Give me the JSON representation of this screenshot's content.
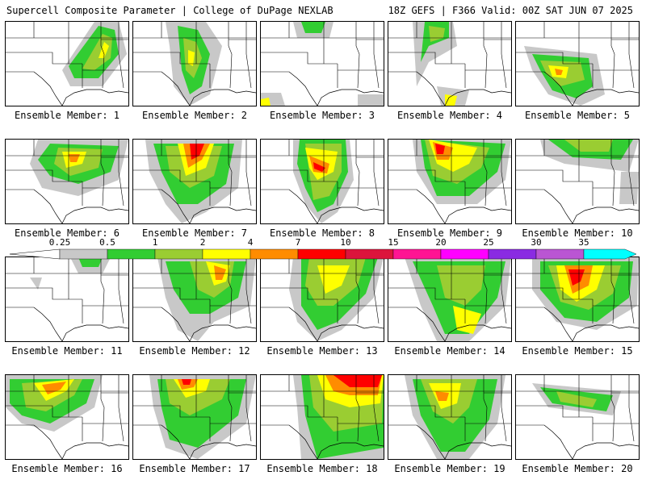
{
  "header": {
    "title": "Supercell Composite Parameter | College of DuPage NEXLAB",
    "valid": "18Z GEFS | F366 Valid: 00Z SAT JUN 07 2025"
  },
  "legend": {
    "ticks": [
      "0.25",
      "0.5",
      "1",
      "2",
      "4",
      "7",
      "10",
      "15",
      "20",
      "25",
      "30",
      "35"
    ],
    "colors": [
      "#c8c8c8",
      "#32cd32",
      "#9acd32",
      "#ffff00",
      "#ff8c00",
      "#ff0000",
      "#dc143c",
      "#ff1493",
      "#ff00ff",
      "#8a2be2",
      "#ba55d3",
      "#00ffff"
    ]
  },
  "members": [
    {
      "label": "Ensemble Member: 1"
    },
    {
      "label": "Ensemble Member: 2"
    },
    {
      "label": "Ensemble Member: 3"
    },
    {
      "label": "Ensemble Member: 4"
    },
    {
      "label": "Ensemble Member: 5"
    },
    {
      "label": "Ensemble Member: 6"
    },
    {
      "label": "Ensemble Member: 7"
    },
    {
      "label": "Ensemble Member: 8"
    },
    {
      "label": "Ensemble Member: 9"
    },
    {
      "label": "Ensemble Member: 10"
    },
    {
      "label": "Ensemble Member: 11"
    },
    {
      "label": "Ensemble Member: 12"
    },
    {
      "label": "Ensemble Member: 13"
    },
    {
      "label": "Ensemble Member: 14"
    },
    {
      "label": "Ensemble Member: 15"
    },
    {
      "label": "Ensemble Member: 16"
    },
    {
      "label": "Ensemble Member: 17"
    },
    {
      "label": "Ensemble Member: 18"
    },
    {
      "label": "Ensemble Member: 19"
    },
    {
      "label": "Ensemble Member: 20"
    }
  ]
}
